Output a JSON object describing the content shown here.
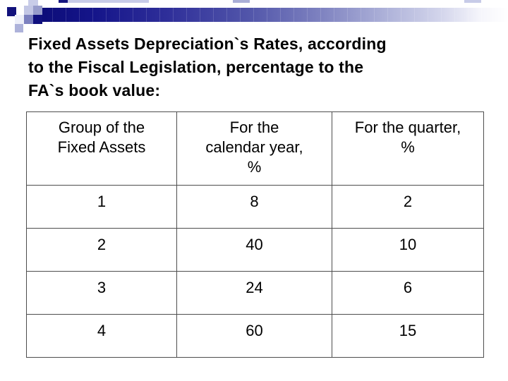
{
  "slide_title": {
    "lines": [
      "Fixed Assets Depreciation`s Rates, according",
      "to the Fiscal Legislation, percentage to the",
      "FA`s book value:"
    ]
  },
  "table": {
    "headers": [
      {
        "lines": [
          "Group of the",
          "Fixed Assets"
        ]
      },
      {
        "lines": [
          "For the",
          "calendar year,",
          "%"
        ]
      },
      {
        "lines": [
          "For the quarter,",
          "%"
        ]
      }
    ],
    "rows": [
      [
        "1",
        "8",
        "2"
      ],
      [
        "2",
        "40",
        "10"
      ],
      [
        "3",
        "24",
        "6"
      ],
      [
        "4",
        "60",
        "15"
      ]
    ]
  },
  "colors": {
    "accent_navy": "#10107e",
    "accent_lavender": "#c7cbe8",
    "title_text": "#000000",
    "table_border": "#4d4d4d",
    "background": "#ffffff"
  }
}
